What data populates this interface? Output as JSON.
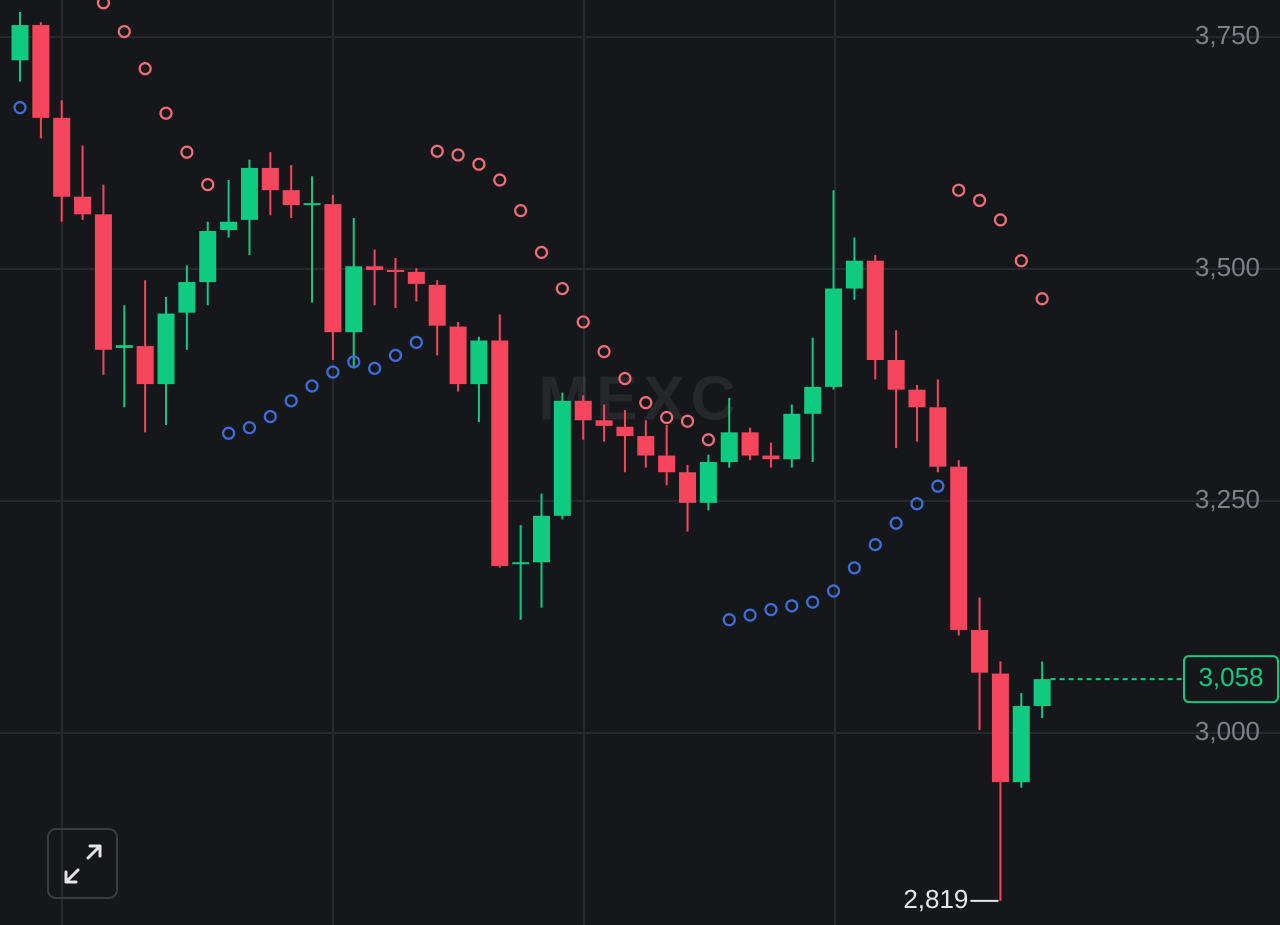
{
  "chart_data": {
    "type": "candlestick",
    "watermark": "MEXC",
    "open": [
      3725,
      3763,
      3663,
      3578,
      3559,
      3415,
      3417,
      3376,
      3453,
      3486,
      3542,
      3553,
      3609,
      3585,
      3569,
      3570,
      3432,
      3503,
      3499,
      3497,
      3483,
      3438,
      3376,
      3423,
      3182,
      3184,
      3234,
      3358,
      3337,
      3330,
      3320,
      3299,
      3281,
      3248,
      3292,
      3324,
      3299,
      3295,
      3344,
      3373,
      3479,
      3509,
      3402,
      3370,
      3351,
      3287,
      3111,
      3064,
      2947,
      3029
    ],
    "high": [
      3777,
      3766,
      3682,
      3633,
      3591,
      3461,
      3488,
      3470,
      3504,
      3551,
      3596,
      3618,
      3626,
      3612,
      3600,
      3580,
      3555,
      3521,
      3512,
      3501,
      3488,
      3443,
      3427,
      3451,
      3224,
      3258,
      3367,
      3364,
      3354,
      3348,
      3337,
      3332,
      3289,
      3300,
      3361,
      3329,
      3313,
      3354,
      3426,
      3585,
      3534,
      3515,
      3434,
      3375,
      3381,
      3294,
      3146,
      3077,
      3043,
      3077
    ],
    "low": [
      3702,
      3641,
      3551,
      3553,
      3386,
      3351,
      3324,
      3332,
      3413,
      3461,
      3534,
      3515,
      3558,
      3555,
      3464,
      3402,
      3393,
      3461,
      3458,
      3465,
      3407,
      3368,
      3335,
      3178,
      3122,
      3135,
      3230,
      3316,
      3314,
      3281,
      3286,
      3267,
      3217,
      3240,
      3286,
      3294,
      3286,
      3286,
      3292,
      3370,
      3467,
      3381,
      3307,
      3314,
      3281,
      3105,
      3003,
      2819,
      2941,
      3016
    ],
    "close": [
      3763,
      3663,
      3578,
      3559,
      3413,
      3418,
      3376,
      3452,
      3486,
      3541,
      3551,
      3609,
      3585,
      3569,
      3571,
      3432,
      3503,
      3499,
      3497,
      3484,
      3439,
      3376,
      3423,
      3180,
      3184,
      3234,
      3358,
      3337,
      3331,
      3320,
      3299,
      3281,
      3248,
      3292,
      3324,
      3299,
      3295,
      3344,
      3373,
      3479,
      3509,
      3402,
      3370,
      3351,
      3287,
      3111,
      3065,
      2947,
      3029,
      3058
    ],
    "sar": [
      3674,
      null,
      null,
      null,
      3787,
      3756,
      3716,
      3668,
      3626,
      3591,
      3323,
      3329,
      3341,
      3358,
      3374,
      3389,
      3400,
      3393,
      3407,
      3421,
      3627,
      3623,
      3613,
      3596,
      3563,
      3518,
      3479,
      3443,
      3411,
      3382,
      3356,
      3340,
      3336,
      3316,
      3122,
      3127,
      3133,
      3137,
      3141,
      3153,
      3178,
      3203,
      3226,
      3247,
      3266,
      3585,
      3574,
      3553,
      3509,
      3468
    ],
    "up_color": "#0ecb81",
    "down_color": "#f6465d",
    "sar_below_color": "#3d6fdb",
    "sar_above_color": "#f26d78",
    "last_price_label": "3,058",
    "low_label": "2,819",
    "ylim": [
      2793,
      3790
    ],
    "yticks": [
      {
        "value": 3000,
        "label": "3,000"
      },
      {
        "value": 3250,
        "label": "3,250"
      },
      {
        "value": 3500,
        "label": "3,500"
      },
      {
        "value": 3750,
        "label": "3,750"
      }
    ],
    "grid": true
  }
}
